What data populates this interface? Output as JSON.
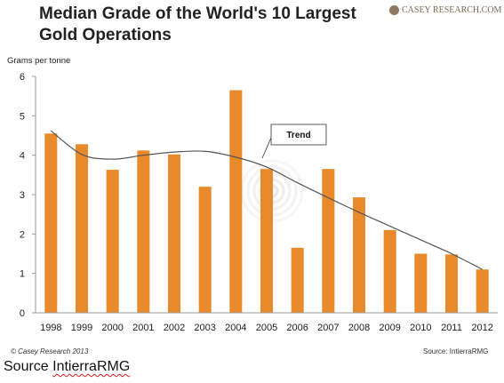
{
  "header": {
    "title_line1": "Median Grade of the World's 10 Largest",
    "title_line2": "Gold Operations",
    "logo_text": "CASEY RESEARCH.COM"
  },
  "footer": {
    "copyright": "© Casey Research 2013",
    "source_small": "Source: IntierraRMG",
    "source_big_prefix": "Source ",
    "source_big_name": "IntierraRMG"
  },
  "colors": {
    "bar": "#e8892a",
    "trend": "#555555",
    "axis": "#999999"
  },
  "chart_data": {
    "type": "bar",
    "ylabel": "Grams per tonne",
    "ylim": [
      0,
      6
    ],
    "yticks": [
      0,
      1,
      2,
      3,
      4,
      5,
      6
    ],
    "categories": [
      "1998",
      "1999",
      "2000",
      "2001",
      "2002",
      "2003",
      "2004",
      "2005",
      "2006",
      "2007",
      "2008",
      "2009",
      "2010",
      "2011",
      "2012"
    ],
    "values": [
      4.55,
      4.28,
      3.63,
      4.12,
      4.02,
      3.2,
      5.65,
      3.65,
      1.65,
      3.65,
      2.93,
      2.1,
      1.5,
      1.48,
      1.1
    ],
    "trend": {
      "label": "Trend",
      "values": [
        4.62,
        4.02,
        3.9,
        4.0,
        4.08,
        4.1,
        3.95,
        3.7,
        3.3,
        2.92,
        2.55,
        2.2,
        1.85,
        1.5,
        1.1
      ]
    },
    "grid": false,
    "legend": "none"
  }
}
